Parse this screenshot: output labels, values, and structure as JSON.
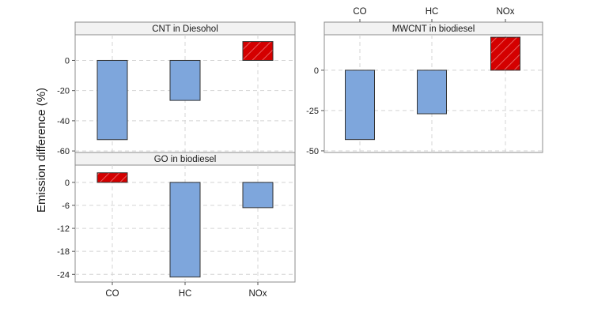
{
  "chart_data": {
    "type": "bar",
    "ylabel": "Emission difference (%)",
    "categories": [
      "CO",
      "HC",
      "NOx"
    ],
    "series_styles": {
      "reduction": {
        "fill": "#7ea6dc",
        "pattern": "solid"
      },
      "increase": {
        "fill": "#d40000",
        "pattern": "hatched"
      }
    },
    "panels": [
      {
        "title": "CNT in Diesohol",
        "values": [
          -52.5,
          -26.5,
          12.5
        ],
        "ylim": [
          -61,
          17
        ],
        "yticks": [
          0,
          -20,
          -40,
          -60
        ],
        "ytick_labels": [
          "0",
          "-20",
          "-40",
          "-60"
        ]
      },
      {
        "title": "MWCNT in biodiesel",
        "values": [
          -43,
          -27,
          20.5
        ],
        "ylim": [
          -51,
          22
        ],
        "yticks": [
          0,
          -25,
          -50
        ],
        "ytick_labels": [
          "0",
          "-25",
          "-50"
        ]
      },
      {
        "title": "GO in biodiesel",
        "values": [
          2.5,
          -24.7,
          -6.6
        ],
        "ylim": [
          -26,
          4.5
        ],
        "yticks": [
          0,
          -6,
          -12,
          -18,
          -24
        ],
        "ytick_labels": [
          "0",
          "-6",
          "-12",
          "-18",
          "-24"
        ]
      }
    ]
  }
}
